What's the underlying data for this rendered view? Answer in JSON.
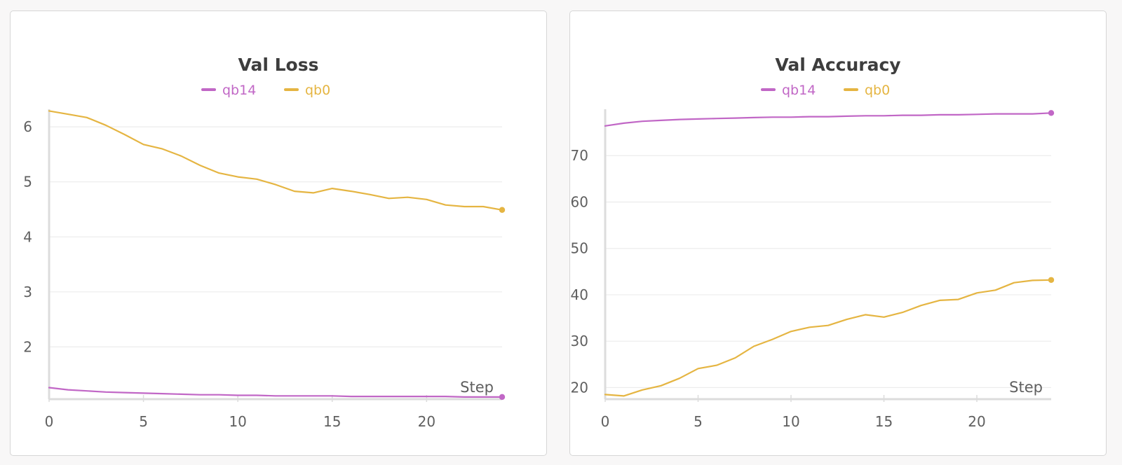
{
  "chart_data": [
    {
      "type": "line",
      "title": "Val Loss",
      "xlabel": "Step",
      "ylabel": "",
      "x": [
        0,
        1,
        2,
        3,
        4,
        5,
        6,
        7,
        8,
        9,
        10,
        11,
        12,
        13,
        14,
        15,
        16,
        17,
        18,
        19,
        20,
        21,
        22,
        23,
        24
      ],
      "xlim": [
        0,
        24
      ],
      "ylim": [
        1.05,
        6.32
      ],
      "xticks": [
        0,
        5,
        10,
        15,
        20
      ],
      "yticks": [
        2,
        3,
        4,
        5,
        6
      ],
      "grid": true,
      "legend_position": "top-center",
      "series": [
        {
          "name": "qb14",
          "color": "#c167c6",
          "values": [
            1.26,
            1.22,
            1.2,
            1.18,
            1.17,
            1.16,
            1.15,
            1.14,
            1.13,
            1.13,
            1.12,
            1.12,
            1.11,
            1.11,
            1.11,
            1.11,
            1.1,
            1.1,
            1.1,
            1.1,
            1.1,
            1.1,
            1.09,
            1.09,
            1.09
          ]
        },
        {
          "name": "qb0",
          "color": "#e5b542",
          "values": [
            6.29,
            6.23,
            6.17,
            6.03,
            5.86,
            5.68,
            5.6,
            5.47,
            5.3,
            5.16,
            5.09,
            5.05,
            4.95,
            4.83,
            4.8,
            4.88,
            4.83,
            4.77,
            4.7,
            4.72,
            4.68,
            4.58,
            4.55,
            4.55,
            4.49
          ]
        }
      ]
    },
    {
      "type": "line",
      "title": "Val Accuracy",
      "xlabel": "Step",
      "ylabel": "",
      "x": [
        0,
        1,
        2,
        3,
        4,
        5,
        6,
        7,
        8,
        9,
        10,
        11,
        12,
        13,
        14,
        15,
        16,
        17,
        18,
        19,
        20,
        21,
        22,
        23,
        24
      ],
      "xlim": [
        0,
        24
      ],
      "ylim": [
        17.5,
        80
      ],
      "xticks": [
        0,
        5,
        10,
        15,
        20
      ],
      "yticks": [
        20,
        30,
        40,
        50,
        60,
        70
      ],
      "grid": true,
      "legend_position": "top-center",
      "series": [
        {
          "name": "qb14",
          "color": "#c167c6",
          "values": [
            76.4,
            77.0,
            77.4,
            77.6,
            77.8,
            77.9,
            78.0,
            78.1,
            78.2,
            78.3,
            78.3,
            78.4,
            78.4,
            78.5,
            78.6,
            78.6,
            78.7,
            78.7,
            78.8,
            78.8,
            78.9,
            79.0,
            79.0,
            79.0,
            79.2
          ]
        },
        {
          "name": "qb0",
          "color": "#e5b542",
          "values": [
            18.5,
            18.2,
            19.5,
            20.4,
            22.0,
            24.1,
            24.8,
            26.4,
            28.9,
            30.4,
            32.1,
            33.0,
            33.4,
            34.7,
            35.7,
            35.2,
            36.2,
            37.7,
            38.8,
            39.0,
            40.4,
            41.0,
            42.6,
            43.1,
            43.2
          ]
        }
      ]
    }
  ]
}
